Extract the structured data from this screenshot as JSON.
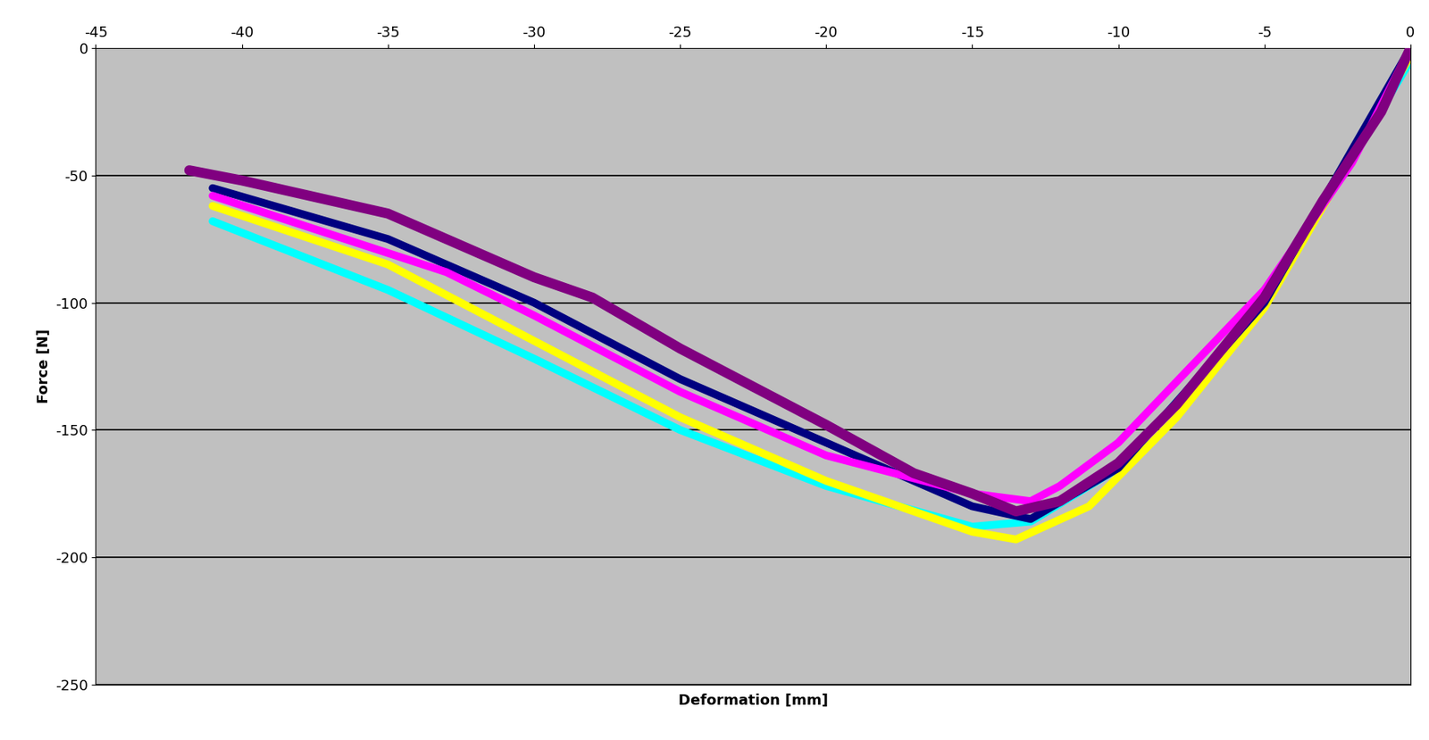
{
  "chart_data": {
    "type": "line",
    "x_label": "Deformation [mm]",
    "y_label": "Force [N]",
    "xlim": [
      -45,
      0
    ],
    "ylim": [
      -250,
      0
    ],
    "xticks": [
      -45,
      -40,
      -35,
      -30,
      -25,
      -20,
      -15,
      -10,
      -5,
      0
    ],
    "yticks": [
      -250,
      -200,
      -150,
      -100,
      -50,
      0
    ],
    "grid": true,
    "series": [
      {
        "color": "#00ffff",
        "x": [
          -41,
          -35,
          -30,
          -25,
          -20,
          -15,
          -13,
          -10,
          -5,
          0
        ],
        "values": [
          -68,
          -95,
          -122,
          -150,
          -172,
          -188,
          -186,
          -165,
          -100,
          -5
        ]
      },
      {
        "color": "#ffff00",
        "x": [
          -41,
          -35,
          -30,
          -25,
          -20,
          -15,
          -13.5,
          -11,
          -8,
          -5,
          0
        ],
        "values": [
          -62,
          -85,
          -115,
          -145,
          -170,
          -190,
          -193,
          -180,
          -145,
          -102,
          -3
        ]
      },
      {
        "color": "#000080",
        "x": [
          -41,
          -35,
          -30,
          -25,
          -20,
          -15,
          -13,
          -10,
          -5,
          0
        ],
        "values": [
          -55,
          -75,
          -100,
          -130,
          -155,
          -180,
          -185,
          -165,
          -100,
          0
        ]
      },
      {
        "color": "#ff00ff",
        "x": [
          -41,
          -33,
          -30,
          -25,
          -20,
          -15,
          -13,
          -12,
          -10,
          -5,
          -2,
          0
        ],
        "values": [
          -58,
          -88,
          -105,
          -135,
          -160,
          -175,
          -178,
          -172,
          -155,
          -95,
          -45,
          0
        ]
      },
      {
        "color": "#800080",
        "x": [
          -41.8,
          -40,
          -35,
          -30,
          -28,
          -25,
          -20,
          -17,
          -15,
          -13.5,
          -12,
          -10,
          -8,
          -5,
          -3,
          -1,
          0
        ],
        "values": [
          -48,
          -52,
          -65,
          -90,
          -98,
          -118,
          -148,
          -167,
          -175,
          -182,
          -178,
          -163,
          -140,
          -98,
          -60,
          -25,
          0
        ]
      }
    ]
  }
}
